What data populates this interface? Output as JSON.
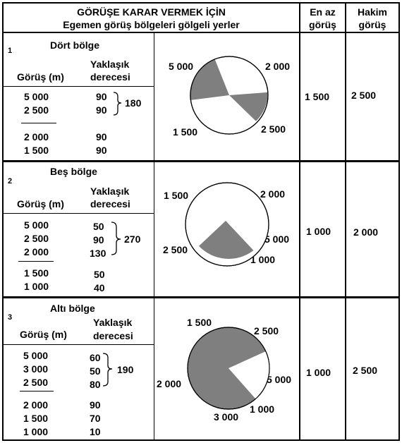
{
  "header": {
    "title_line1": "GÖRÜŞE KARAR VERMEK İÇİN",
    "title_line2": "Egemen görüş bölgeleri gölgeli yerler",
    "col_min_line1": "En az",
    "col_min_line2": "görüş",
    "col_max_line1": "Hakim",
    "col_max_line2": "görüş"
  },
  "labels": {
    "visibility": "Görüş (m)",
    "approx_line1": "Yaklaşık",
    "approx_line2": "derecesi"
  },
  "sections": [
    {
      "number": "1",
      "title": "Dört bölge",
      "rows_top": [
        {
          "vis": "5 000",
          "deg": "90"
        },
        {
          "vis": "2 500",
          "deg": "90"
        }
      ],
      "sum": "180",
      "rows_bottom": [
        {
          "vis": "2 000",
          "deg": "90"
        },
        {
          "vis": "1 500",
          "deg": "90"
        }
      ],
      "diagram_labels": [
        "5 000",
        "2 000",
        "1 500",
        "2 500"
      ],
      "min_visibility": "1 500",
      "prevailing_visibility": "2 500"
    },
    {
      "number": "2",
      "title": "Beş bölge",
      "rows_top": [
        {
          "vis": "5 000",
          "deg": "50"
        },
        {
          "vis": "2 500",
          "deg": "90"
        },
        {
          "vis": "2 000",
          "deg": "130"
        }
      ],
      "sum": "270",
      "rows_bottom": [
        {
          "vis": "1 500",
          "deg": "50"
        },
        {
          "vis": "1 000",
          "deg": "40"
        }
      ],
      "diagram_labels": [
        "1 500",
        "2 000",
        "5 000",
        "2 500",
        "1 000"
      ],
      "min_visibility": "1 000",
      "prevailing_visibility": "2 000"
    },
    {
      "number": "3",
      "title": "Altı bölge",
      "rows_top": [
        {
          "vis": "5 000",
          "deg": "60"
        },
        {
          "vis": "3 000",
          "deg": "50"
        },
        {
          "vis": "2 500",
          "deg": "80"
        }
      ],
      "sum": "190",
      "rows_bottom": [
        {
          "vis": "2 000",
          "deg": "90"
        },
        {
          "vis": "1 500",
          "deg": "70"
        },
        {
          "vis": "1 000",
          "deg": "10"
        }
      ],
      "diagram_labels": [
        "1 500",
        "2 500",
        "5 000",
        "2 000",
        "3 000",
        "1 000"
      ],
      "min_visibility": "1 000",
      "prevailing_visibility": "2 500"
    }
  ],
  "colors": {
    "shade": "#7f7f7f",
    "line": "#000000",
    "background": "#ffffff"
  }
}
